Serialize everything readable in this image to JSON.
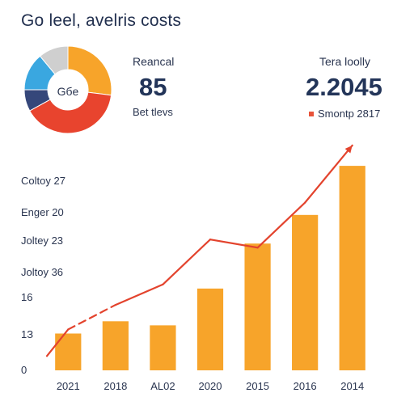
{
  "title": "Go leel, avelris costs",
  "stats": {
    "left": {
      "label": "Reancal",
      "value": "85",
      "sub": "Bet tlevs"
    },
    "right": {
      "label": "Tera loolly",
      "value": "2.2045",
      "legend": "Smontp 2817"
    }
  },
  "colors": {
    "bar": "#f7a42a",
    "line": "#e3432d",
    "pie": [
      "#f7a42a",
      "#e8442e",
      "#35477a",
      "#3aa7e0",
      "#cfcfcf"
    ]
  },
  "chart_data": [
    {
      "type": "pie",
      "center_label": "Gбe",
      "values": [
        27,
        40,
        8,
        14,
        11
      ]
    },
    {
      "type": "bar",
      "categories": [
        "2021",
        "2018",
        "AL02",
        "2020",
        "2015",
        "2016",
        "2014"
      ],
      "values": [
        0.9,
        1.2,
        1.1,
        2.0,
        3.1,
        3.8,
        5.0
      ],
      "ylim": [
        0,
        5.2
      ],
      "yticks": [
        "0",
        "1З",
        "16",
        "Joltoy 36",
        "Joltey 23",
        "Enger 20",
        "Coltoy 27"
      ],
      "line": [
        1.0,
        1.6,
        2.1,
        3.2,
        3.0,
        4.1,
        5.5
      ],
      "line_dashed_segments": [
        1
      ]
    }
  ]
}
